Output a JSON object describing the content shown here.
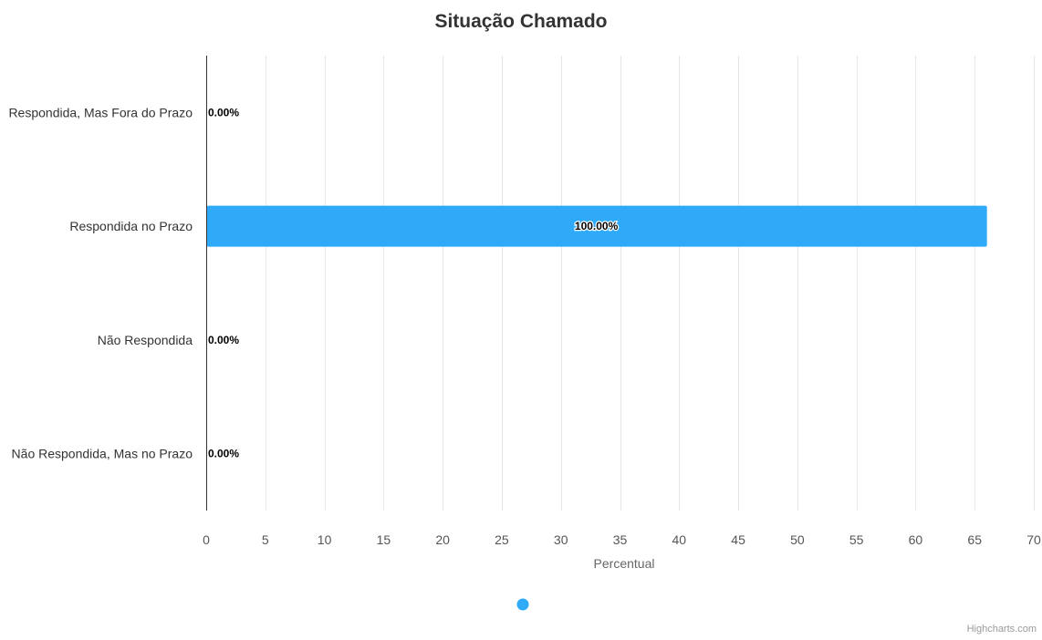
{
  "chart_data": {
    "type": "bar",
    "orientation": "horizontal",
    "title": "Situação Chamado",
    "categories": [
      "Respondida, Mas Fora do Prazo",
      "Respondida no Prazo",
      "Não Respondida",
      "Não Respondida, Mas no Prazo"
    ],
    "series": [
      {
        "values": [
          0,
          66,
          0,
          0
        ],
        "data_labels": [
          "0.00%",
          "100.00%",
          "0.00%",
          "0.00%"
        ],
        "color": "#2eaaf9"
      }
    ],
    "xlabel": "Percentual",
    "ylabel": "",
    "xlim": [
      0,
      70
    ],
    "ticks": [
      "0",
      "5",
      "10",
      "15",
      "20",
      "25",
      "30",
      "35",
      "40",
      "45",
      "50",
      "55",
      "60",
      "65",
      "70"
    ],
    "grid": true,
    "legend_position": "bottom-center"
  },
  "credits": "Highcharts.com"
}
